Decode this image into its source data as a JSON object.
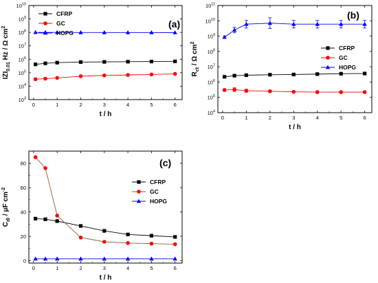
{
  "chart_data": [
    {
      "panel_label": "(a)",
      "type": "line",
      "xlabel": "t / h",
      "ylabel": "|Z|_{0.01 Hz} / Ω cm^2",
      "ylabel_parts": {
        "main": "IZI",
        "sub": "0.01",
        "rest": " Hz / Ω cm",
        "sup": "2"
      },
      "y_scale": "log",
      "xlim": [
        -0.2,
        6.3
      ],
      "ylim": [
        1000,
        10000000000
      ],
      "xticks": [
        0,
        1,
        2,
        3,
        4,
        5,
        6
      ],
      "yticks": [
        1000,
        10000,
        100000,
        1000000,
        10000000,
        100000000,
        1000000000,
        10000000000
      ],
      "ytick_labels": [
        {
          "b": "10",
          "e": "3"
        },
        {
          "b": "10",
          "e": "4"
        },
        {
          "b": "10",
          "e": "5"
        },
        {
          "b": "10",
          "e": "6"
        },
        {
          "b": "10",
          "e": "7"
        },
        {
          "b": "10",
          "e": "8"
        },
        {
          "b": "10",
          "e": "9"
        },
        {
          "b": "10",
          "e": "10"
        }
      ],
      "legend_position": "top-left",
      "series": [
        {
          "name": "CFRP",
          "color": "#000000",
          "marker": "square",
          "x": [
            0.08,
            0.5,
            1,
            2,
            3,
            4,
            5,
            6
          ],
          "y": [
            420000,
            500000,
            560000,
            620000,
            640000,
            660000,
            680000,
            700000
          ]
        },
        {
          "name": "GC",
          "color": "#ff0000",
          "marker": "circle",
          "x": [
            0.08,
            0.5,
            1,
            2,
            3,
            4,
            5,
            6
          ],
          "y": [
            33000,
            36000,
            41000,
            55000,
            63000,
            68000,
            74000,
            82000
          ]
        },
        {
          "name": "HOPG",
          "color": "#0000ff",
          "marker": "triangle",
          "x": [
            0.08,
            0.5,
            1,
            2,
            3,
            4,
            5,
            6
          ],
          "y": [
            100000000,
            100000000,
            100000000,
            98000000,
            98000000,
            97000000,
            97000000,
            96000000
          ]
        }
      ]
    },
    {
      "panel_label": "(b)",
      "type": "line",
      "xlabel": "t / h",
      "ylabel": "R_ct / Ω cm^2",
      "ylabel_parts": {
        "main": "R",
        "sub": "ct",
        "rest": " / Ω cm",
        "sup": "2"
      },
      "y_scale": "log",
      "xlim": [
        -0.2,
        6.3
      ],
      "ylim": [
        10000,
        100000000000
      ],
      "xticks": [
        0,
        1,
        2,
        3,
        4,
        5,
        6
      ],
      "yticks": [
        10000,
        100000,
        1000000,
        10000000,
        100000000,
        1000000000,
        10000000000,
        100000000000
      ],
      "ytick_labels": [
        {
          "b": "10",
          "e": "4"
        },
        {
          "b": "10",
          "e": "5"
        },
        {
          "b": "10",
          "e": "6"
        },
        {
          "b": "10",
          "e": "7"
        },
        {
          "b": "10",
          "e": "8"
        },
        {
          "b": "10",
          "e": "9"
        },
        {
          "b": "10",
          "e": "10"
        },
        {
          "b": "10",
          "e": "11"
        }
      ],
      "legend_position": "right",
      "series": [
        {
          "name": "CFRP",
          "color": "#000000",
          "marker": "square",
          "x": [
            0.08,
            0.5,
            1,
            2,
            3,
            4,
            5,
            6
          ],
          "y": [
            2200000,
            2600000,
            2800000,
            3000000,
            3100000,
            3300000,
            3500000,
            3600000
          ],
          "err": [
            0.05,
            0.05,
            0.05,
            0.05,
            0.05,
            0.05,
            0.05,
            0.05
          ]
        },
        {
          "name": "GC",
          "color": "#ff0000",
          "marker": "circle",
          "x": [
            0.08,
            0.5,
            1,
            2,
            3,
            4,
            5,
            6
          ],
          "y": [
            300000,
            320000,
            270000,
            250000,
            230000,
            220000,
            220000,
            220000
          ],
          "err": [
            0.08,
            0.12,
            0.1,
            0.06,
            0.05,
            0.05,
            0.05,
            0.05
          ]
        },
        {
          "name": "HOPG",
          "color": "#0000ff",
          "marker": "triangle",
          "x": [
            0.08,
            0.5,
            1,
            2,
            3,
            4,
            5,
            6
          ],
          "y": [
            850000000,
            2500000000,
            6000000000,
            7000000000,
            6000000000,
            6000000000,
            6000000000,
            6000000000
          ],
          "err": [
            0.08,
            0.18,
            0.25,
            0.35,
            0.25,
            0.25,
            0.25,
            0.25
          ]
        }
      ]
    },
    {
      "panel_label": "(c)",
      "type": "line",
      "xlabel": "t / h",
      "ylabel": "C_dl / μF cm^-2",
      "ylabel_parts": {
        "main": "C",
        "sub": "dl",
        "rest": " / μF cm",
        "sup": "-2"
      },
      "y_scale": "linear",
      "xlim": [
        -0.2,
        6.3
      ],
      "ylim": [
        -2,
        90
      ],
      "xticks": [
        0,
        1,
        2,
        3,
        4,
        5,
        6
      ],
      "yticks": [
        0,
        20,
        40,
        60,
        80
      ],
      "ytick_labels": [
        {
          "b": "0",
          "e": ""
        },
        {
          "b": "20",
          "e": ""
        },
        {
          "b": "40",
          "e": ""
        },
        {
          "b": "60",
          "e": ""
        },
        {
          "b": "80",
          "e": ""
        }
      ],
      "legend_position": "right",
      "series": [
        {
          "name": "CFRP",
          "color": "#000000",
          "line_color": "#000000",
          "marker": "square",
          "x": [
            0.08,
            0.5,
            1,
            2,
            3,
            4,
            5,
            6
          ],
          "y": [
            34.5,
            34,
            32.5,
            28.5,
            24.5,
            21.5,
            20.5,
            19.5
          ]
        },
        {
          "name": "GC",
          "color": "#ff0000",
          "line_color": "#8b5a2b",
          "marker": "circle",
          "x": [
            0.08,
            0.5,
            1,
            2,
            3,
            4,
            5,
            6
          ],
          "y": [
            85,
            76,
            37,
            19,
            15.5,
            14.5,
            14,
            13.5
          ]
        },
        {
          "name": "HOPG",
          "color": "#0000ff",
          "line_color": "#0000ff",
          "marker": "triangle",
          "x": [
            0.08,
            0.5,
            1,
            2,
            3,
            4,
            5,
            6
          ],
          "y": [
            1.5,
            1.5,
            1.5,
            1.5,
            1.5,
            1.5,
            1.5,
            1.5
          ]
        }
      ]
    }
  ]
}
